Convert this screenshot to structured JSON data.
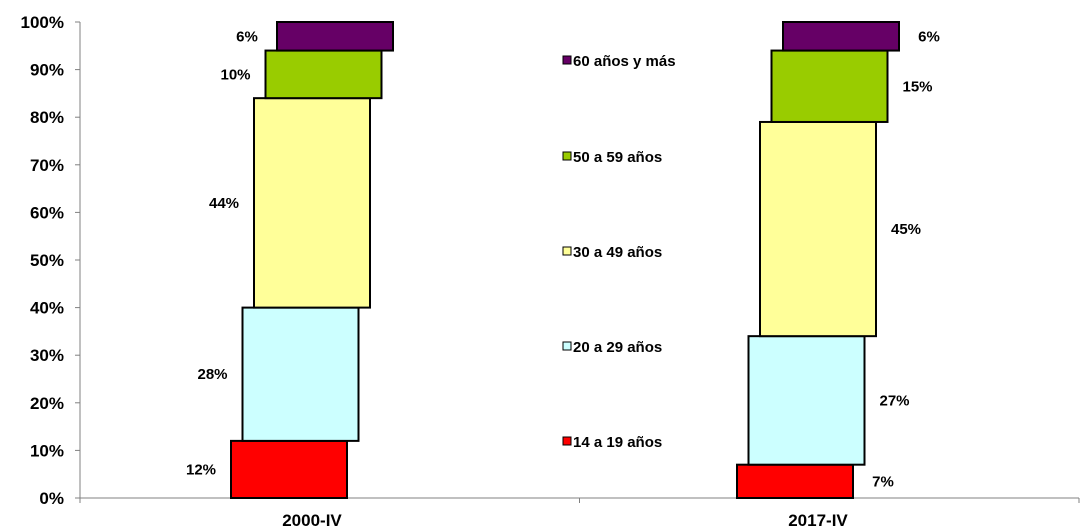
{
  "chart_data": {
    "type": "bar",
    "stacked": true,
    "percent_stacked": true,
    "categories": [
      "2000-IV",
      "2017-IV"
    ],
    "series": [
      {
        "name": "14 a 19 años",
        "values": [
          12,
          7
        ],
        "labels": [
          "12%",
          "7%"
        ],
        "color": "#ff0000"
      },
      {
        "name": "20 a 29 años",
        "values": [
          28,
          27
        ],
        "labels": [
          "28%",
          "27%"
        ],
        "color": "#ccffff"
      },
      {
        "name": "30 a 49 años",
        "values": [
          44,
          45
        ],
        "labels": [
          "44%",
          "45%"
        ],
        "color": "#ffff99"
      },
      {
        "name": "50 a 59 años",
        "values": [
          10,
          15
        ],
        "labels": [
          "10%",
          "15%"
        ],
        "color": "#99cc00"
      },
      {
        "name": "60 años y más",
        "values": [
          6,
          6
        ],
        "labels": [
          "6%",
          "6%"
        ],
        "color": "#660066"
      }
    ],
    "y_ticks": [
      "0%",
      "10%",
      "20%",
      "30%",
      "40%",
      "50%",
      "60%",
      "70%",
      "80%",
      "90%",
      "100%"
    ],
    "ylim": [
      0,
      100
    ],
    "title": "",
    "xlabel": "",
    "ylabel": "",
    "grid": false,
    "legend_position": "center"
  }
}
